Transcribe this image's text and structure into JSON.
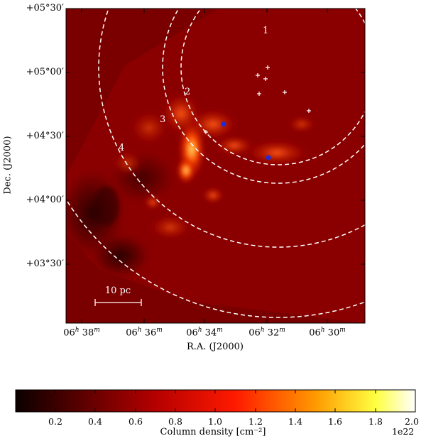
{
  "figure": {
    "y_axis": {
      "label": "Dec. (J2000)",
      "ticks": [
        "+05°30′",
        "+05°00′",
        "+04°30′",
        "+04°00′",
        "+03°30′"
      ]
    },
    "x_axis": {
      "label": "R.A. (J2000)",
      "ticks": [
        "06h 38m",
        "06h 36m",
        "06h 34m",
        "06h 32m",
        "06h 30m"
      ]
    },
    "ring_labels": [
      "1",
      "2",
      "3",
      "4"
    ],
    "scale_bar": "10 pc",
    "colorbar": {
      "label": "Column density [cm⁻²]",
      "ticks": [
        "0.2",
        "0.4",
        "0.6",
        "0.8",
        "1.0",
        "1.2",
        "1.4",
        "1.6",
        "1.8",
        "2.0"
      ],
      "multiplier": "1e22",
      "colormap": "hot"
    },
    "colors": {
      "background_map": "#7a0000",
      "ring_line": "#ffffff",
      "marker_blue": "#1f2bd6",
      "marker_cross": "#ffffff"
    }
  }
}
